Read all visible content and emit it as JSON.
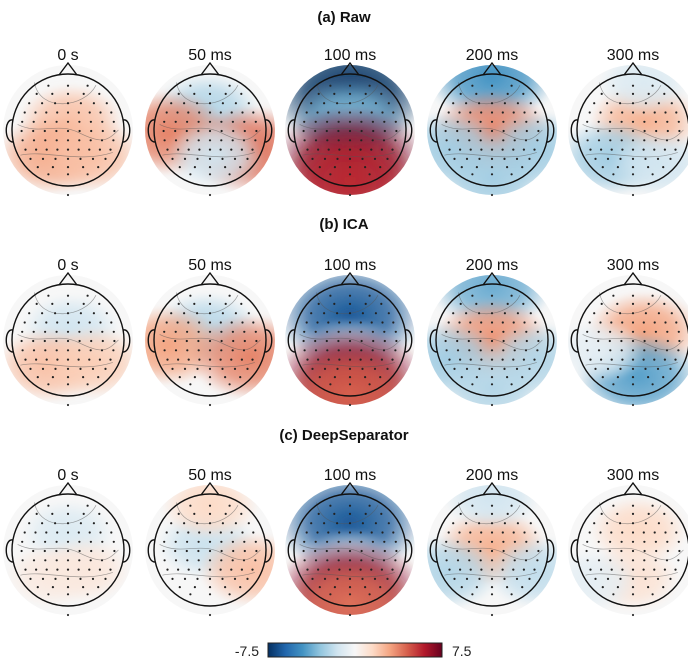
{
  "chart_data": {
    "type": "heatmap",
    "colormap": "RdBu_r",
    "rows": [
      {
        "title": "(a) Raw",
        "maps": [
          {
            "time": "0 s",
            "blobs": [
              [
                0.05,
                -0.15,
                0.3
              ],
              [
                -0.3,
                0.45,
                0.38
              ],
              [
                0.4,
                0.45,
                0.3
              ]
            ]
          },
          {
            "time": "50 ms",
            "blobs": [
              [
                -0.05,
                -0.35,
                -0.3
              ],
              [
                -0.75,
                0.05,
                0.5
              ],
              [
                0.72,
                0.35,
                0.55
              ],
              [
                0.1,
                0.45,
                -0.2
              ]
            ]
          },
          {
            "time": "100 ms",
            "blobs": [
              [
                0,
                -0.65,
                -1.0
              ],
              [
                0,
                -0.2,
                -0.45
              ],
              [
                0,
                0.55,
                0.95
              ],
              [
                0,
                0.9,
                0.75
              ]
            ]
          },
          {
            "time": "200 ms",
            "blobs": [
              [
                0,
                -0.95,
                -0.6
              ],
              [
                0,
                0.05,
                0.5
              ],
              [
                -0.75,
                0.35,
                -0.35
              ],
              [
                0.8,
                0.35,
                -0.35
              ],
              [
                0,
                0.85,
                -0.35
              ]
            ]
          },
          {
            "time": "300 ms",
            "blobs": [
              [
                0.2,
                -0.15,
                0.35
              ],
              [
                -0.4,
                0.5,
                -0.35
              ],
              [
                0.45,
                0.6,
                -0.2
              ],
              [
                0.2,
                -0.85,
                -0.15
              ]
            ]
          }
        ]
      },
      {
        "title": "(b) ICA",
        "maps": [
          {
            "time": "0 s",
            "blobs": [
              [
                0.05,
                -0.2,
                -0.2
              ],
              [
                -0.35,
                0.45,
                0.3
              ],
              [
                0.45,
                0.4,
                0.25
              ]
            ]
          },
          {
            "time": "50 ms",
            "blobs": [
              [
                -0.05,
                -0.2,
                -0.28
              ],
              [
                -0.75,
                0.1,
                0.4
              ],
              [
                0.72,
                0.3,
                0.5
              ]
            ]
          },
          {
            "time": "100 ms",
            "blobs": [
              [
                0,
                -0.45,
                -0.85
              ],
              [
                0,
                0.25,
                -0.25
              ],
              [
                0,
                0.7,
                0.9
              ],
              [
                0,
                0.95,
                0.6
              ]
            ]
          },
          {
            "time": "200 ms",
            "blobs": [
              [
                0,
                -0.95,
                -0.5
              ],
              [
                0,
                0.0,
                0.45
              ],
              [
                -0.8,
                0.35,
                -0.35
              ],
              [
                0.8,
                0.35,
                -0.3
              ],
              [
                0,
                0.85,
                -0.3
              ]
            ]
          },
          {
            "time": "300 ms",
            "blobs": [
              [
                0.2,
                -0.15,
                0.4
              ],
              [
                0.1,
                0.65,
                -0.55
              ],
              [
                -0.6,
                0.2,
                -0.1
              ]
            ]
          }
        ]
      },
      {
        "title": "(c) DeepSeparator",
        "maps": [
          {
            "time": "0 s",
            "blobs": [
              [
                0.0,
                -0.3,
                -0.15
              ],
              [
                0.3,
                0.35,
                0.12
              ],
              [
                -0.3,
                0.45,
                0.1
              ]
            ]
          },
          {
            "time": "50 ms",
            "blobs": [
              [
                -0.05,
                -0.1,
                -0.22
              ],
              [
                0.0,
                -0.8,
                0.2
              ],
              [
                0.75,
                0.35,
                0.3
              ]
            ]
          },
          {
            "time": "100 ms",
            "blobs": [
              [
                0,
                -0.5,
                -0.85
              ],
              [
                0,
                0.25,
                -0.2
              ],
              [
                0,
                0.75,
                0.9
              ],
              [
                0,
                0.95,
                0.55
              ]
            ]
          },
          {
            "time": "200 ms",
            "blobs": [
              [
                0,
                -0.05,
                0.35
              ],
              [
                -0.8,
                0.4,
                -0.3
              ],
              [
                0.8,
                0.4,
                -0.25
              ],
              [
                0,
                -0.95,
                -0.2
              ]
            ]
          },
          {
            "time": "300 ms",
            "blobs": [
              [
                0.1,
                -0.35,
                0.2
              ],
              [
                0.0,
                0.5,
                0.15
              ],
              [
                -0.7,
                0.55,
                -0.1
              ]
            ]
          }
        ]
      }
    ],
    "colorbar": {
      "min": -7.5,
      "max": 7.5,
      "min_label": "-7.5",
      "max_label": "7.5"
    }
  }
}
